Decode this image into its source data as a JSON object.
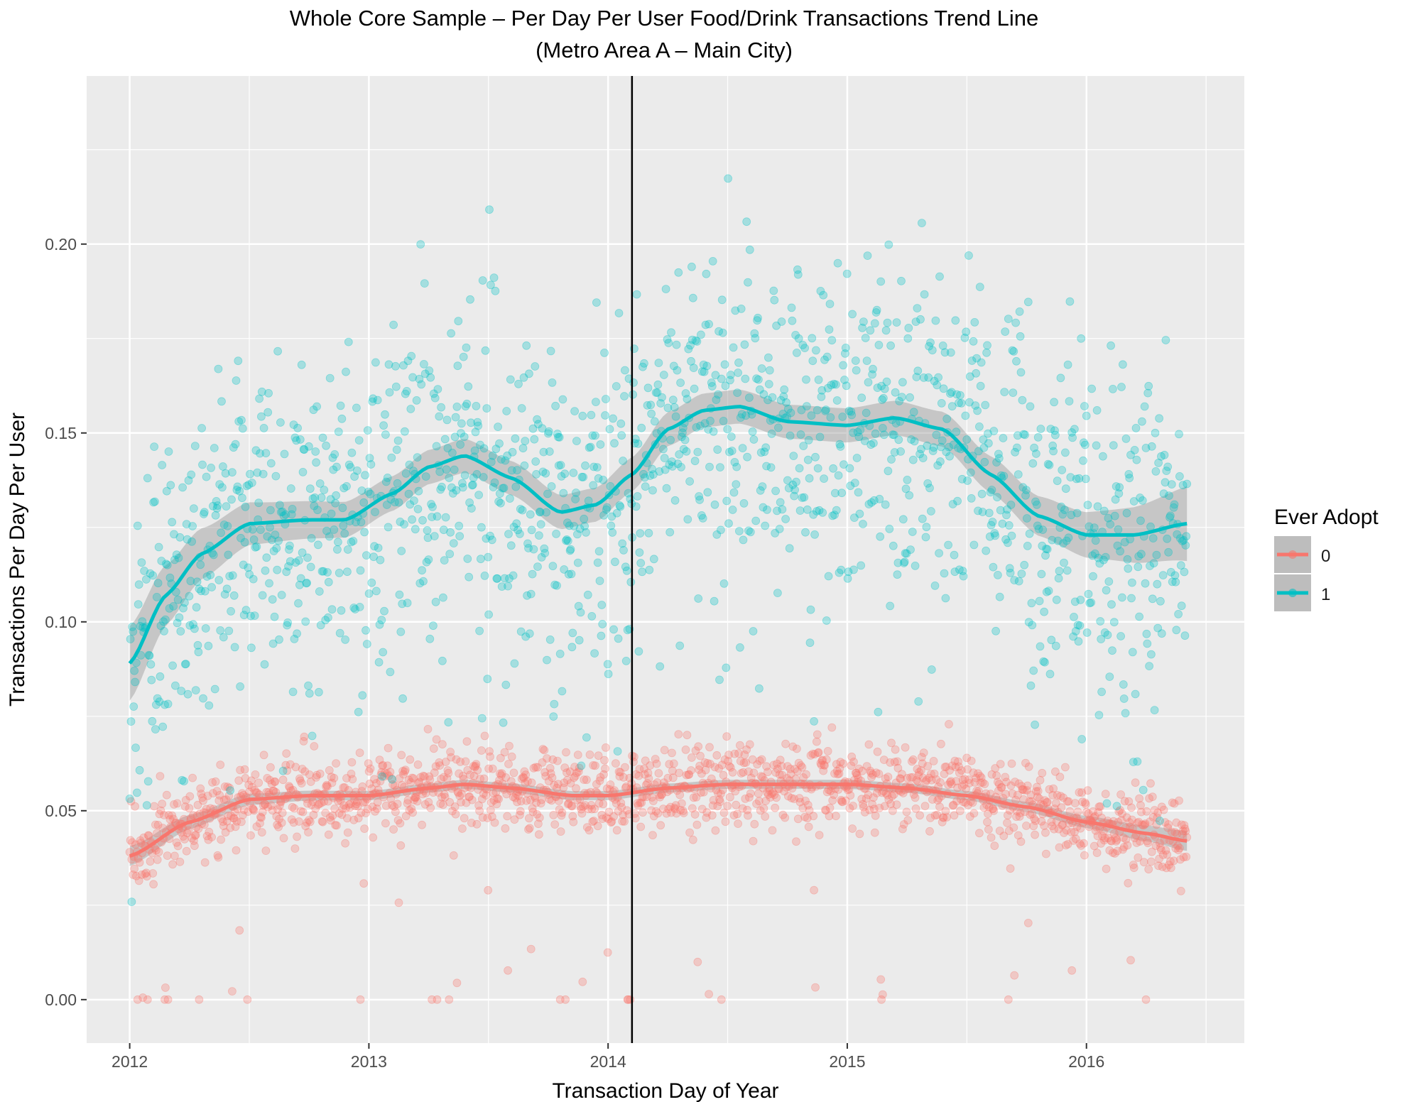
{
  "chart_data": {
    "type": "scatter",
    "title": "Whole Core Sample – Per Day Per User Food/Drink Transactions Trend Line",
    "subtitle": "(Metro Area A – Main City)",
    "xlabel": "Transaction Day of Year",
    "ylabel": "Transactions Per Day Per User",
    "xlim": [
      2011.82,
      2016.66
    ],
    "ylim": [
      -0.0115,
      0.2445
    ],
    "x_ticks": [
      2012,
      2013,
      2014,
      2015,
      2016
    ],
    "x_tick_labels": [
      "2012",
      "2013",
      "2014",
      "2015",
      "2016"
    ],
    "y_ticks": [
      0,
      0.05,
      0.1,
      0.15,
      0.2
    ],
    "y_tick_labels": [
      "0.00",
      "0.05",
      "0.10",
      "0.15",
      "0.20"
    ],
    "grid": true,
    "vline_x": 2014.1,
    "legend": {
      "title": "Ever Adopt",
      "position": "right",
      "entries": [
        {
          "label": "0",
          "color": "#F8766D"
        },
        {
          "label": "1",
          "color": "#00BFC4"
        }
      ]
    },
    "series": [
      {
        "name": "0",
        "color": "#F8766D",
        "trend": {
          "x": [
            2012.0,
            2012.25,
            2012.5,
            2012.75,
            2013.0,
            2013.25,
            2013.4,
            2013.6,
            2013.85,
            2014.0,
            2014.25,
            2014.5,
            2014.75,
            2015.0,
            2015.25,
            2015.5,
            2015.75,
            2016.0,
            2016.25,
            2016.42
          ],
          "y": [
            0.038,
            0.047,
            0.053,
            0.054,
            0.054,
            0.056,
            0.057,
            0.056,
            0.054,
            0.054,
            0.056,
            0.057,
            0.057,
            0.057,
            0.056,
            0.054,
            0.051,
            0.047,
            0.044,
            0.042
          ]
        },
        "band_halfwidth": 0.0012,
        "scatter_model": {
          "jitter_sd": 0.0055,
          "outlier_rate": 0.025,
          "seed": 1201
        }
      },
      {
        "name": "1",
        "color": "#00BFC4",
        "trend": {
          "x": [
            2012.0,
            2012.15,
            2012.3,
            2012.5,
            2012.75,
            2012.9,
            2013.1,
            2013.25,
            2013.4,
            2013.6,
            2013.8,
            2013.95,
            2014.1,
            2014.25,
            2014.4,
            2014.55,
            2014.75,
            2015.0,
            2015.2,
            2015.4,
            2015.6,
            2015.8,
            2016.0,
            2016.2,
            2016.42
          ],
          "y": [
            0.089,
            0.107,
            0.118,
            0.126,
            0.127,
            0.127,
            0.134,
            0.141,
            0.144,
            0.138,
            0.129,
            0.131,
            0.139,
            0.151,
            0.156,
            0.157,
            0.153,
            0.152,
            0.154,
            0.151,
            0.139,
            0.128,
            0.123,
            0.123,
            0.126
          ]
        },
        "band_halfwidth": 0.0045,
        "scatter_model": {
          "jitter_sd": 0.021,
          "outlier_rate": 0.03,
          "seed": 7731
        }
      }
    ]
  }
}
